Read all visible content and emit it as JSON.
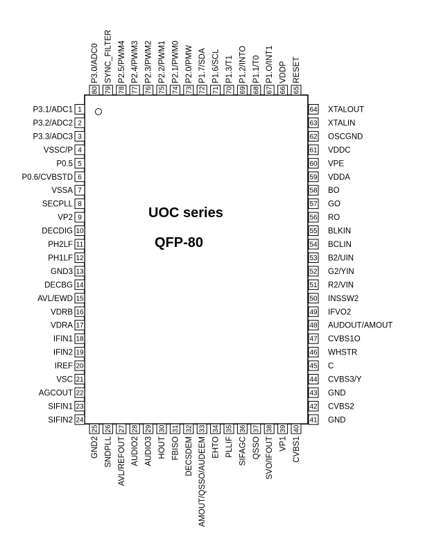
{
  "chip": {
    "series_label": "UOC series",
    "package_label": "QFP-80"
  },
  "pins": {
    "left": [
      {
        "num": "1",
        "name": "P3.1/ADC1"
      },
      {
        "num": "2",
        "name": "P3.2/ADC2"
      },
      {
        "num": "3",
        "name": "P3.3/ADC3"
      },
      {
        "num": "4",
        "name": "VSSC/P"
      },
      {
        "num": "5",
        "name": "P0.5"
      },
      {
        "num": "6",
        "name": "P0.6/CVBSTD"
      },
      {
        "num": "7",
        "name": "VSSA"
      },
      {
        "num": "8",
        "name": "SECPLL"
      },
      {
        "num": "9",
        "name": "VP2"
      },
      {
        "num": "10",
        "name": "DECDIG"
      },
      {
        "num": "11",
        "name": "PH2LF"
      },
      {
        "num": "12",
        "name": "PH1LF"
      },
      {
        "num": "13",
        "name": "GND3"
      },
      {
        "num": "14",
        "name": "DECBG"
      },
      {
        "num": "15",
        "name": "AVL/EWD"
      },
      {
        "num": "16",
        "name": "VDRB"
      },
      {
        "num": "17",
        "name": "VDRA"
      },
      {
        "num": "18",
        "name": "IFIN1"
      },
      {
        "num": "19",
        "name": "IFIN2"
      },
      {
        "num": "20",
        "name": "IREF"
      },
      {
        "num": "21",
        "name": "VSC"
      },
      {
        "num": "22",
        "name": "AGCOUT"
      },
      {
        "num": "23",
        "name": "SIFIN1"
      },
      {
        "num": "24",
        "name": "SIFIN2"
      }
    ],
    "bottom": [
      {
        "num": "25",
        "name": "GND2"
      },
      {
        "num": "26",
        "name": "SNDPLL"
      },
      {
        "num": "27",
        "name": "AVL/REFOUT"
      },
      {
        "num": "28",
        "name": "AUDIO2"
      },
      {
        "num": "29",
        "name": "AUDIO3"
      },
      {
        "num": "30",
        "name": "HOUT"
      },
      {
        "num": "31",
        "name": "FBISO"
      },
      {
        "num": "32",
        "name": "DECSDEM"
      },
      {
        "num": "33",
        "name": "AMOUT/QSSO/AUDEEM"
      },
      {
        "num": "34",
        "name": "EHTO"
      },
      {
        "num": "35",
        "name": "PLLIF"
      },
      {
        "num": "36",
        "name": "SIFAGC"
      },
      {
        "num": "37",
        "name": "QSSO"
      },
      {
        "num": "38",
        "name": "SVO/IFOUT"
      },
      {
        "num": "39",
        "name": "VP1"
      },
      {
        "num": "40",
        "name": "CVBS1"
      }
    ],
    "right": [
      {
        "num": "64",
        "name": "XTALOUT"
      },
      {
        "num": "63",
        "name": "XTALIN"
      },
      {
        "num": "62",
        "name": "OSCGND"
      },
      {
        "num": "61",
        "name": "VDDC"
      },
      {
        "num": "60",
        "name": "VPE"
      },
      {
        "num": "59",
        "name": "VDDA"
      },
      {
        "num": "58",
        "name": "BO"
      },
      {
        "num": "57",
        "name": "GO"
      },
      {
        "num": "56",
        "name": "RO"
      },
      {
        "num": "55",
        "name": "BLKIN"
      },
      {
        "num": "54",
        "name": "BCLIN"
      },
      {
        "num": "53",
        "name": "B2/UIN"
      },
      {
        "num": "52",
        "name": "G2/YIN"
      },
      {
        "num": "51",
        "name": "R2/VIN"
      },
      {
        "num": "50",
        "name": "INSSW2"
      },
      {
        "num": "49",
        "name": "IFVO2"
      },
      {
        "num": "48",
        "name": "AUDOUT/AMOUT"
      },
      {
        "num": "47",
        "name": "CVBS1O"
      },
      {
        "num": "46",
        "name": "WHSTR"
      },
      {
        "num": "45",
        "name": "C"
      },
      {
        "num": "44",
        "name": "CVBS3/Y"
      },
      {
        "num": "43",
        "name": "GND"
      },
      {
        "num": "42",
        "name": "CVBS2"
      },
      {
        "num": "41",
        "name": "GND"
      }
    ],
    "top": [
      {
        "num": "80",
        "name": "P3.0/ADC0"
      },
      {
        "num": "79",
        "name": "SYNC_FILTER"
      },
      {
        "num": "78",
        "name": "P2.5/PWM4"
      },
      {
        "num": "77",
        "name": "P2.4/PWM3"
      },
      {
        "num": "76",
        "name": "P2.3/PWM2"
      },
      {
        "num": "75",
        "name": "P2.2/PWM1"
      },
      {
        "num": "74",
        "name": "P2.1/PWM0"
      },
      {
        "num": "73",
        "name": "P2.0/PMW"
      },
      {
        "num": "72",
        "name": "P1.7/SDA"
      },
      {
        "num": "71",
        "name": "P1.6/SCL"
      },
      {
        "num": "70",
        "name": "P1.3/T1"
      },
      {
        "num": "69",
        "name": "P1.2/INTO"
      },
      {
        "num": "68",
        "name": "P1.1/T0"
      },
      {
        "num": "67",
        "name": "P1.O/INT1"
      },
      {
        "num": "66",
        "name": "VDDP"
      },
      {
        "num": "65",
        "name": "RESET"
      }
    ]
  }
}
